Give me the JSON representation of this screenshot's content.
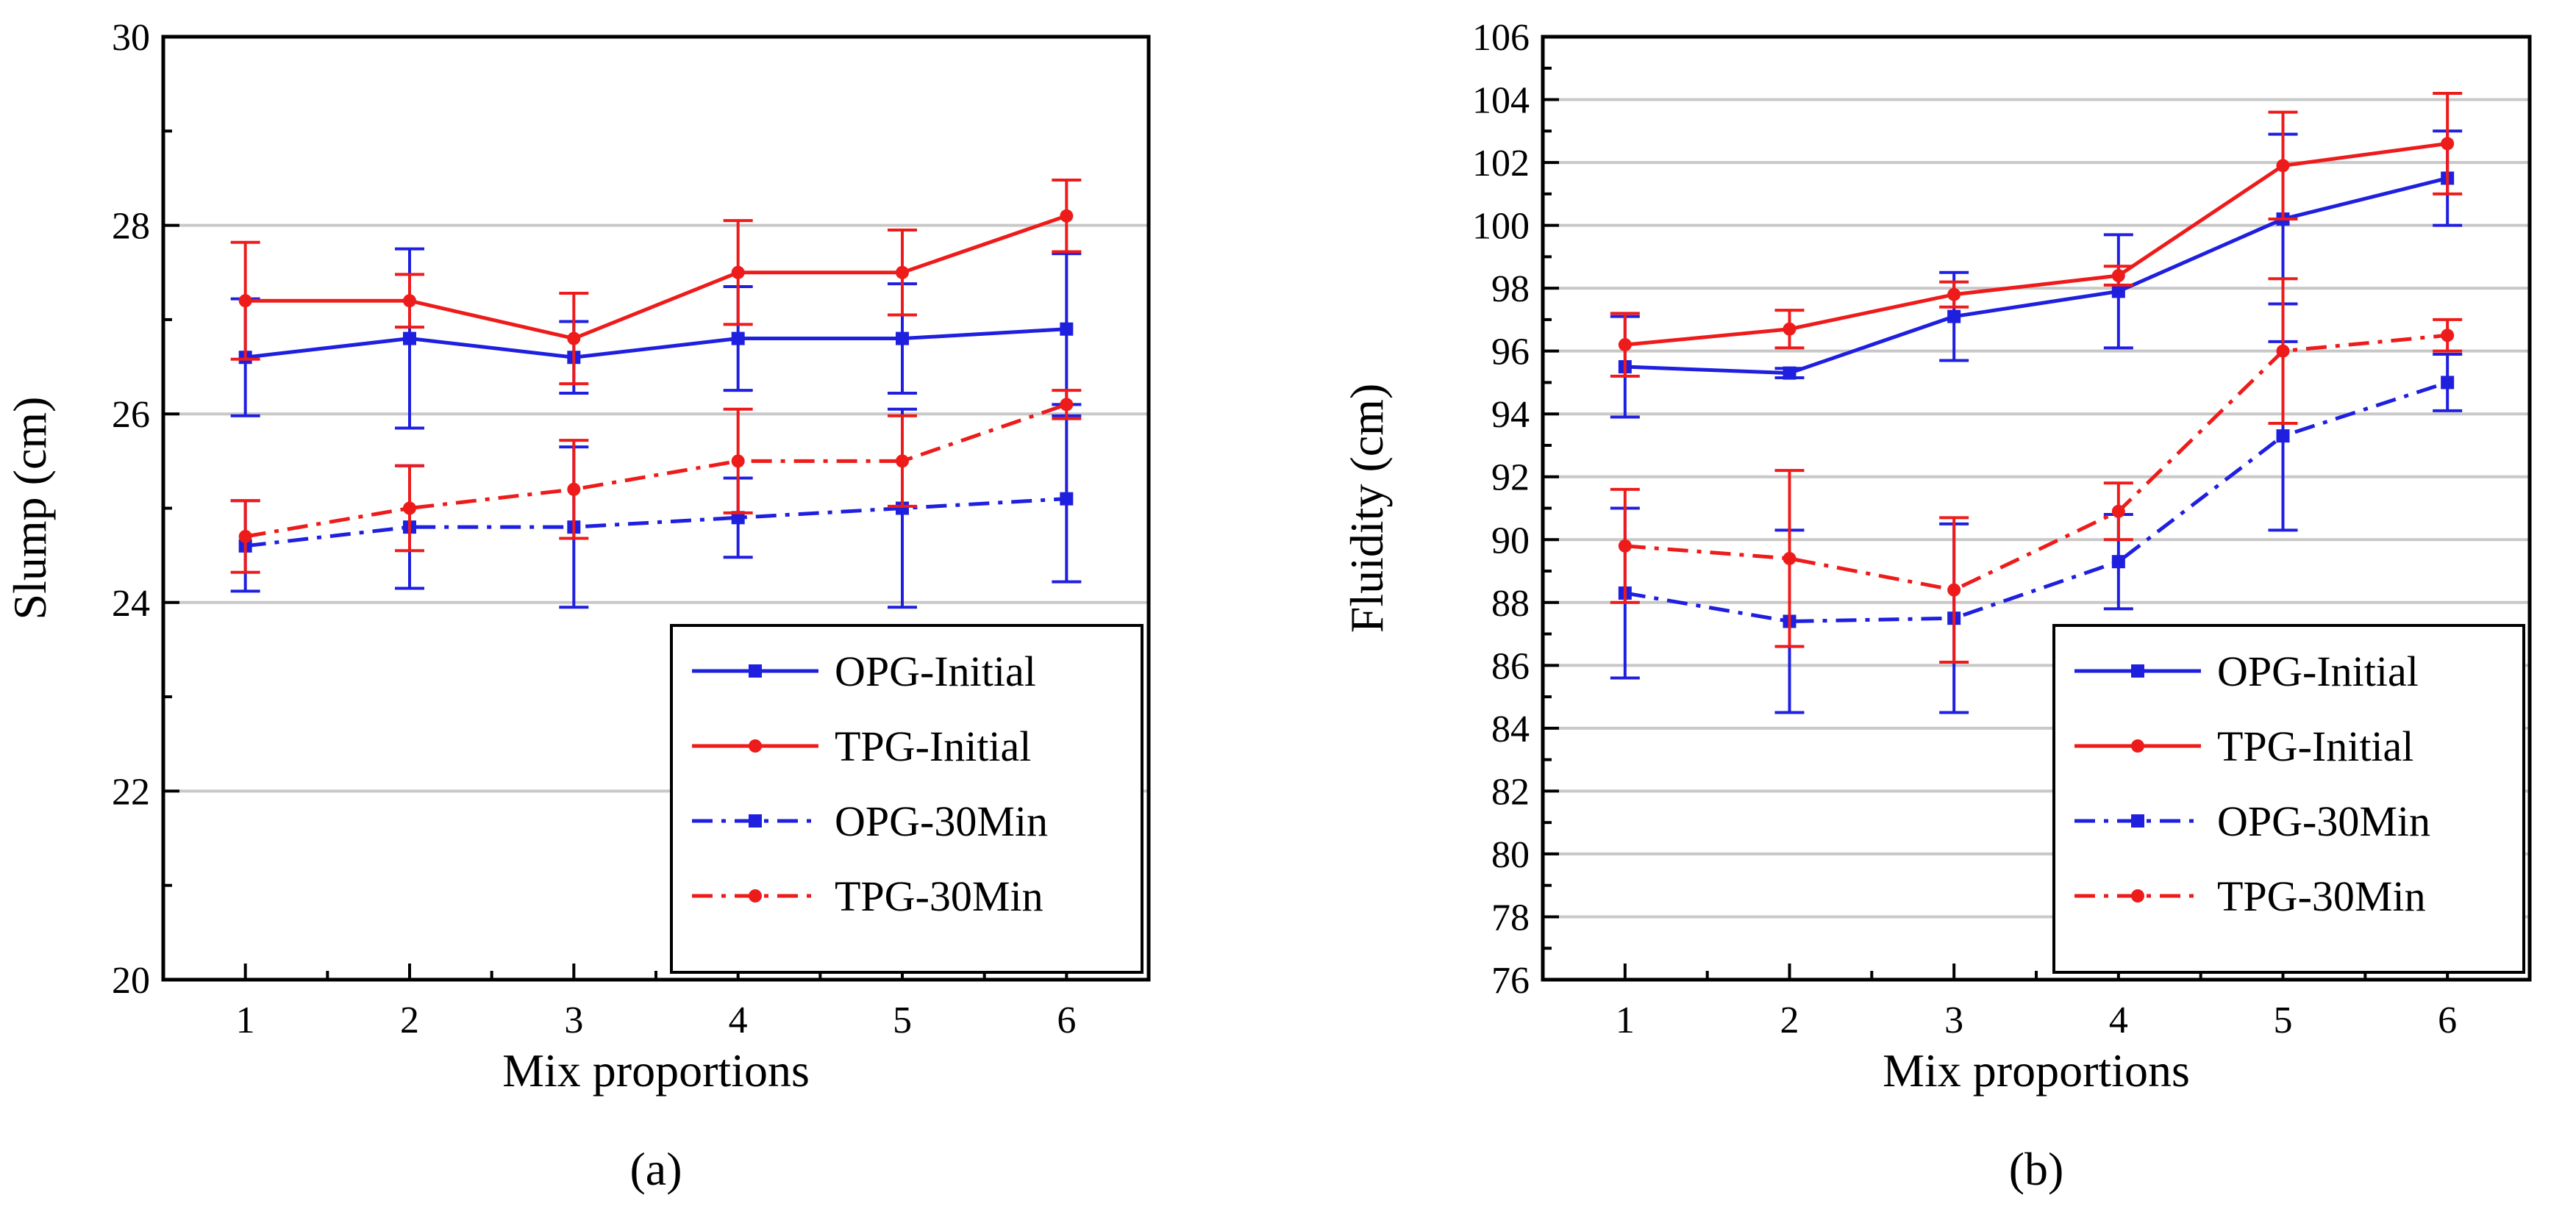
{
  "chart_data": [
    {
      "type": "line",
      "panel_label": "(a)",
      "xlabel": "Mix proportions",
      "ylabel": "Slump (cm)",
      "x": [
        1,
        2,
        3,
        4,
        5,
        6
      ],
      "xticks": [
        "1",
        "2",
        "3",
        "4",
        "5",
        "6"
      ],
      "xlim": [
        0.5,
        6.5
      ],
      "ylim": [
        20,
        30
      ],
      "yticks": [
        "20",
        "22",
        "24",
        "26",
        "28",
        "30"
      ],
      "grid": true,
      "legend_position": "bottom-right",
      "series": [
        {
          "name": "OPG-Initial",
          "style": "solid",
          "marker": "square",
          "color": "#1f1fe0",
          "values": [
            26.6,
            26.8,
            26.6,
            26.8,
            26.8,
            26.9
          ],
          "error": [
            0.62,
            0.95,
            0.38,
            0.55,
            0.58,
            0.8
          ]
        },
        {
          "name": "TPG-Initial",
          "style": "solid",
          "marker": "circle",
          "color": "#ee1b1b",
          "values": [
            27.2,
            27.2,
            26.8,
            27.5,
            27.5,
            28.1
          ],
          "error": [
            0.62,
            0.28,
            0.48,
            0.55,
            0.45,
            0.38
          ]
        },
        {
          "name": "OPG-30Min",
          "style": "dashdot",
          "marker": "square",
          "color": "#1f1fe0",
          "values": [
            24.6,
            24.8,
            24.8,
            24.9,
            25.0,
            25.1
          ],
          "error": [
            0.48,
            0.65,
            0.85,
            0.42,
            1.05,
            0.88
          ]
        },
        {
          "name": "TPG-30Min",
          "style": "dashdot",
          "marker": "circle",
          "color": "#ee1b1b",
          "values": [
            24.7,
            25.0,
            25.2,
            25.5,
            25.5,
            26.1
          ],
          "error": [
            0.38,
            0.45,
            0.52,
            0.55,
            0.48,
            0.15
          ]
        }
      ]
    },
    {
      "type": "line",
      "panel_label": "(b)",
      "xlabel": "Mix proportions",
      "ylabel": "Fluidity (cm)",
      "x": [
        1,
        2,
        3,
        4,
        5,
        6
      ],
      "xticks": [
        "1",
        "2",
        "3",
        "4",
        "5",
        "6"
      ],
      "xlim": [
        0.5,
        6.5
      ],
      "ylim": [
        76,
        106
      ],
      "yticks": [
        "76",
        "78",
        "80",
        "82",
        "84",
        "86",
        "88",
        "90",
        "92",
        "94",
        "96",
        "98",
        "100",
        "102",
        "104",
        "106"
      ],
      "grid": true,
      "legend_position": "bottom-right",
      "series": [
        {
          "name": "OPG-Initial",
          "style": "solid",
          "marker": "square",
          "color": "#1f1fe0",
          "values": [
            95.5,
            95.3,
            97.1,
            97.9,
            100.2,
            101.5
          ],
          "error": [
            1.6,
            0.15,
            1.4,
            1.8,
            2.7,
            1.5
          ]
        },
        {
          "name": "TPG-Initial",
          "style": "solid",
          "marker": "circle",
          "color": "#ee1b1b",
          "values": [
            96.2,
            96.7,
            97.8,
            98.4,
            101.9,
            102.6
          ],
          "error": [
            1.0,
            0.6,
            0.4,
            0.3,
            1.7,
            1.6
          ]
        },
        {
          "name": "OPG-30Min",
          "style": "dashdot",
          "marker": "square",
          "color": "#1f1fe0",
          "values": [
            88.3,
            87.4,
            87.5,
            89.3,
            93.3,
            95.0
          ],
          "error": [
            2.7,
            2.9,
            3.0,
            1.5,
            3.0,
            0.9
          ]
        },
        {
          "name": "TPG-30Min",
          "style": "dashdot",
          "marker": "circle",
          "color": "#ee1b1b",
          "values": [
            89.8,
            89.4,
            88.4,
            90.9,
            96.0,
            96.5
          ],
          "error": [
            1.8,
            2.8,
            2.3,
            0.9,
            2.3,
            0.5
          ]
        }
      ]
    }
  ]
}
